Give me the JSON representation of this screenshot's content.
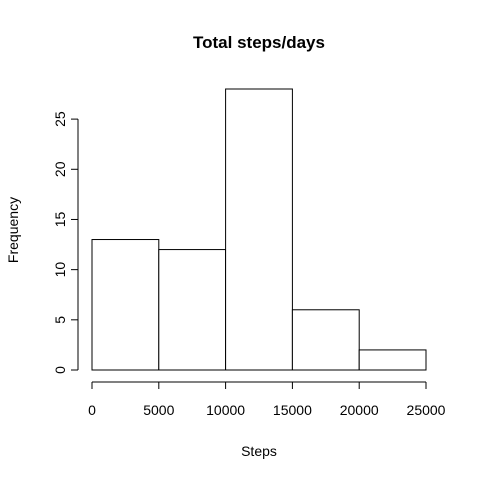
{
  "chart_data": {
    "type": "bar",
    "title": "Total steps/days",
    "xlabel": "Steps",
    "ylabel": "Frequency",
    "bins": [
      {
        "from": 0,
        "to": 5000,
        "count": 13
      },
      {
        "from": 5000,
        "to": 10000,
        "count": 12
      },
      {
        "from": 10000,
        "to": 15000,
        "count": 28
      },
      {
        "from": 15000,
        "to": 20000,
        "count": 6
      },
      {
        "from": 20000,
        "to": 25000,
        "count": 2
      }
    ],
    "x_ticks": [
      0,
      5000,
      10000,
      15000,
      20000,
      25000
    ],
    "x_tick_labels": [
      "0",
      "5000",
      "10000",
      "15000",
      "20000",
      "25000"
    ],
    "y_ticks": [
      0,
      5,
      10,
      15,
      20,
      25
    ],
    "y_tick_labels": [
      "0",
      "5",
      "10",
      "15",
      "20",
      "25"
    ],
    "xlim": [
      0,
      25000
    ],
    "ylim": [
      0,
      28
    ],
    "grid": false,
    "colors": {
      "bar_fill": "#ffffff",
      "bar_stroke": "#000000"
    }
  }
}
